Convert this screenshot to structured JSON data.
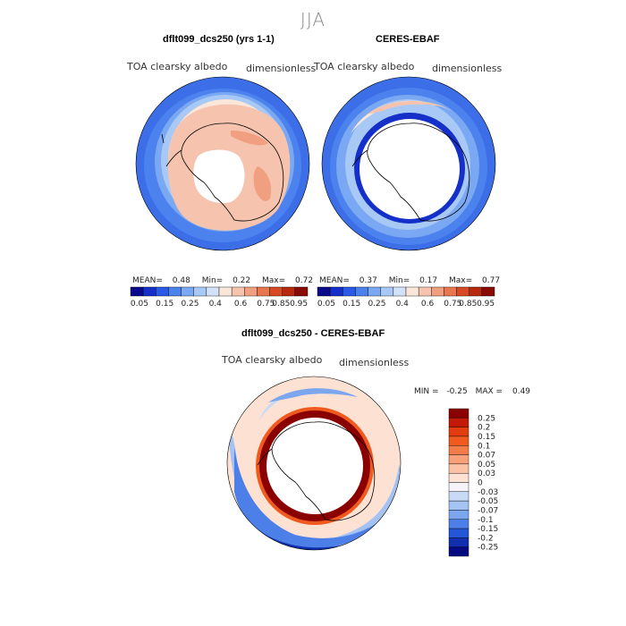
{
  "figure_title": "JJA",
  "panels": [
    {
      "title": "dflt099_dcs250 (yrs 1-1)",
      "variable": "TOA clearsky albedo",
      "units": "dimensionless",
      "stats": {
        "mean_label": "MEAN=",
        "mean": "0.48",
        "min_label": "Min=",
        "min": "0.22",
        "max_label": "Max=",
        "max": "0.72"
      }
    },
    {
      "title": "CERES-EBAF",
      "variable": "TOA clearsky albedo",
      "units": "dimensionless",
      "stats": {
        "mean_label": "MEAN=",
        "mean": "0.37",
        "min_label": "Min=",
        "min": "0.17",
        "max_label": "Max=",
        "max": "0.77"
      }
    },
    {
      "title": "dflt099_dcs250 - CERES-EBAF",
      "variable": "TOA clearsky albedo",
      "units": "dimensionless",
      "stats": {
        "min_label": "MIN =",
        "min": "-0.25",
        "max_label": "MAX =",
        "max": "0.49"
      }
    }
  ],
  "abs_colorbar": {
    "labels": [
      "0.05",
      "0.15",
      "0.25",
      "0.4",
      "0.6",
      "0.75",
      "0.85",
      "0.95"
    ],
    "colors": [
      "#0a0a8a",
      "#1430c8",
      "#2a5ae6",
      "#4c82ee",
      "#7aa8f2",
      "#a8c8f5",
      "#d2e2f8",
      "#fbe6da",
      "#f6c4ae",
      "#f0a080",
      "#e8764e",
      "#d84a24",
      "#b82a10",
      "#8a0a04"
    ]
  },
  "diff_colorbar": {
    "labels": [
      "0.25",
      "0.2",
      "0.15",
      "0.1",
      "0.07",
      "0.05",
      "0.03",
      "0",
      "-0.03",
      "-0.05",
      "-0.07",
      "-0.1",
      "-0.15",
      "-0.2",
      "-0.25"
    ],
    "colors": [
      "#8a0000",
      "#c21a06",
      "#e23c10",
      "#f05a1e",
      "#f47c4a",
      "#f8a07a",
      "#fbc2a6",
      "#fde2d4",
      "#f4f4f8",
      "#c8daf6",
      "#a4c2f2",
      "#7ca6ee",
      "#4c80e8",
      "#2456d8",
      "#1030b0",
      "#060a80"
    ]
  },
  "colors": {
    "land_outline": "#000000",
    "missing": "#ffffff"
  }
}
